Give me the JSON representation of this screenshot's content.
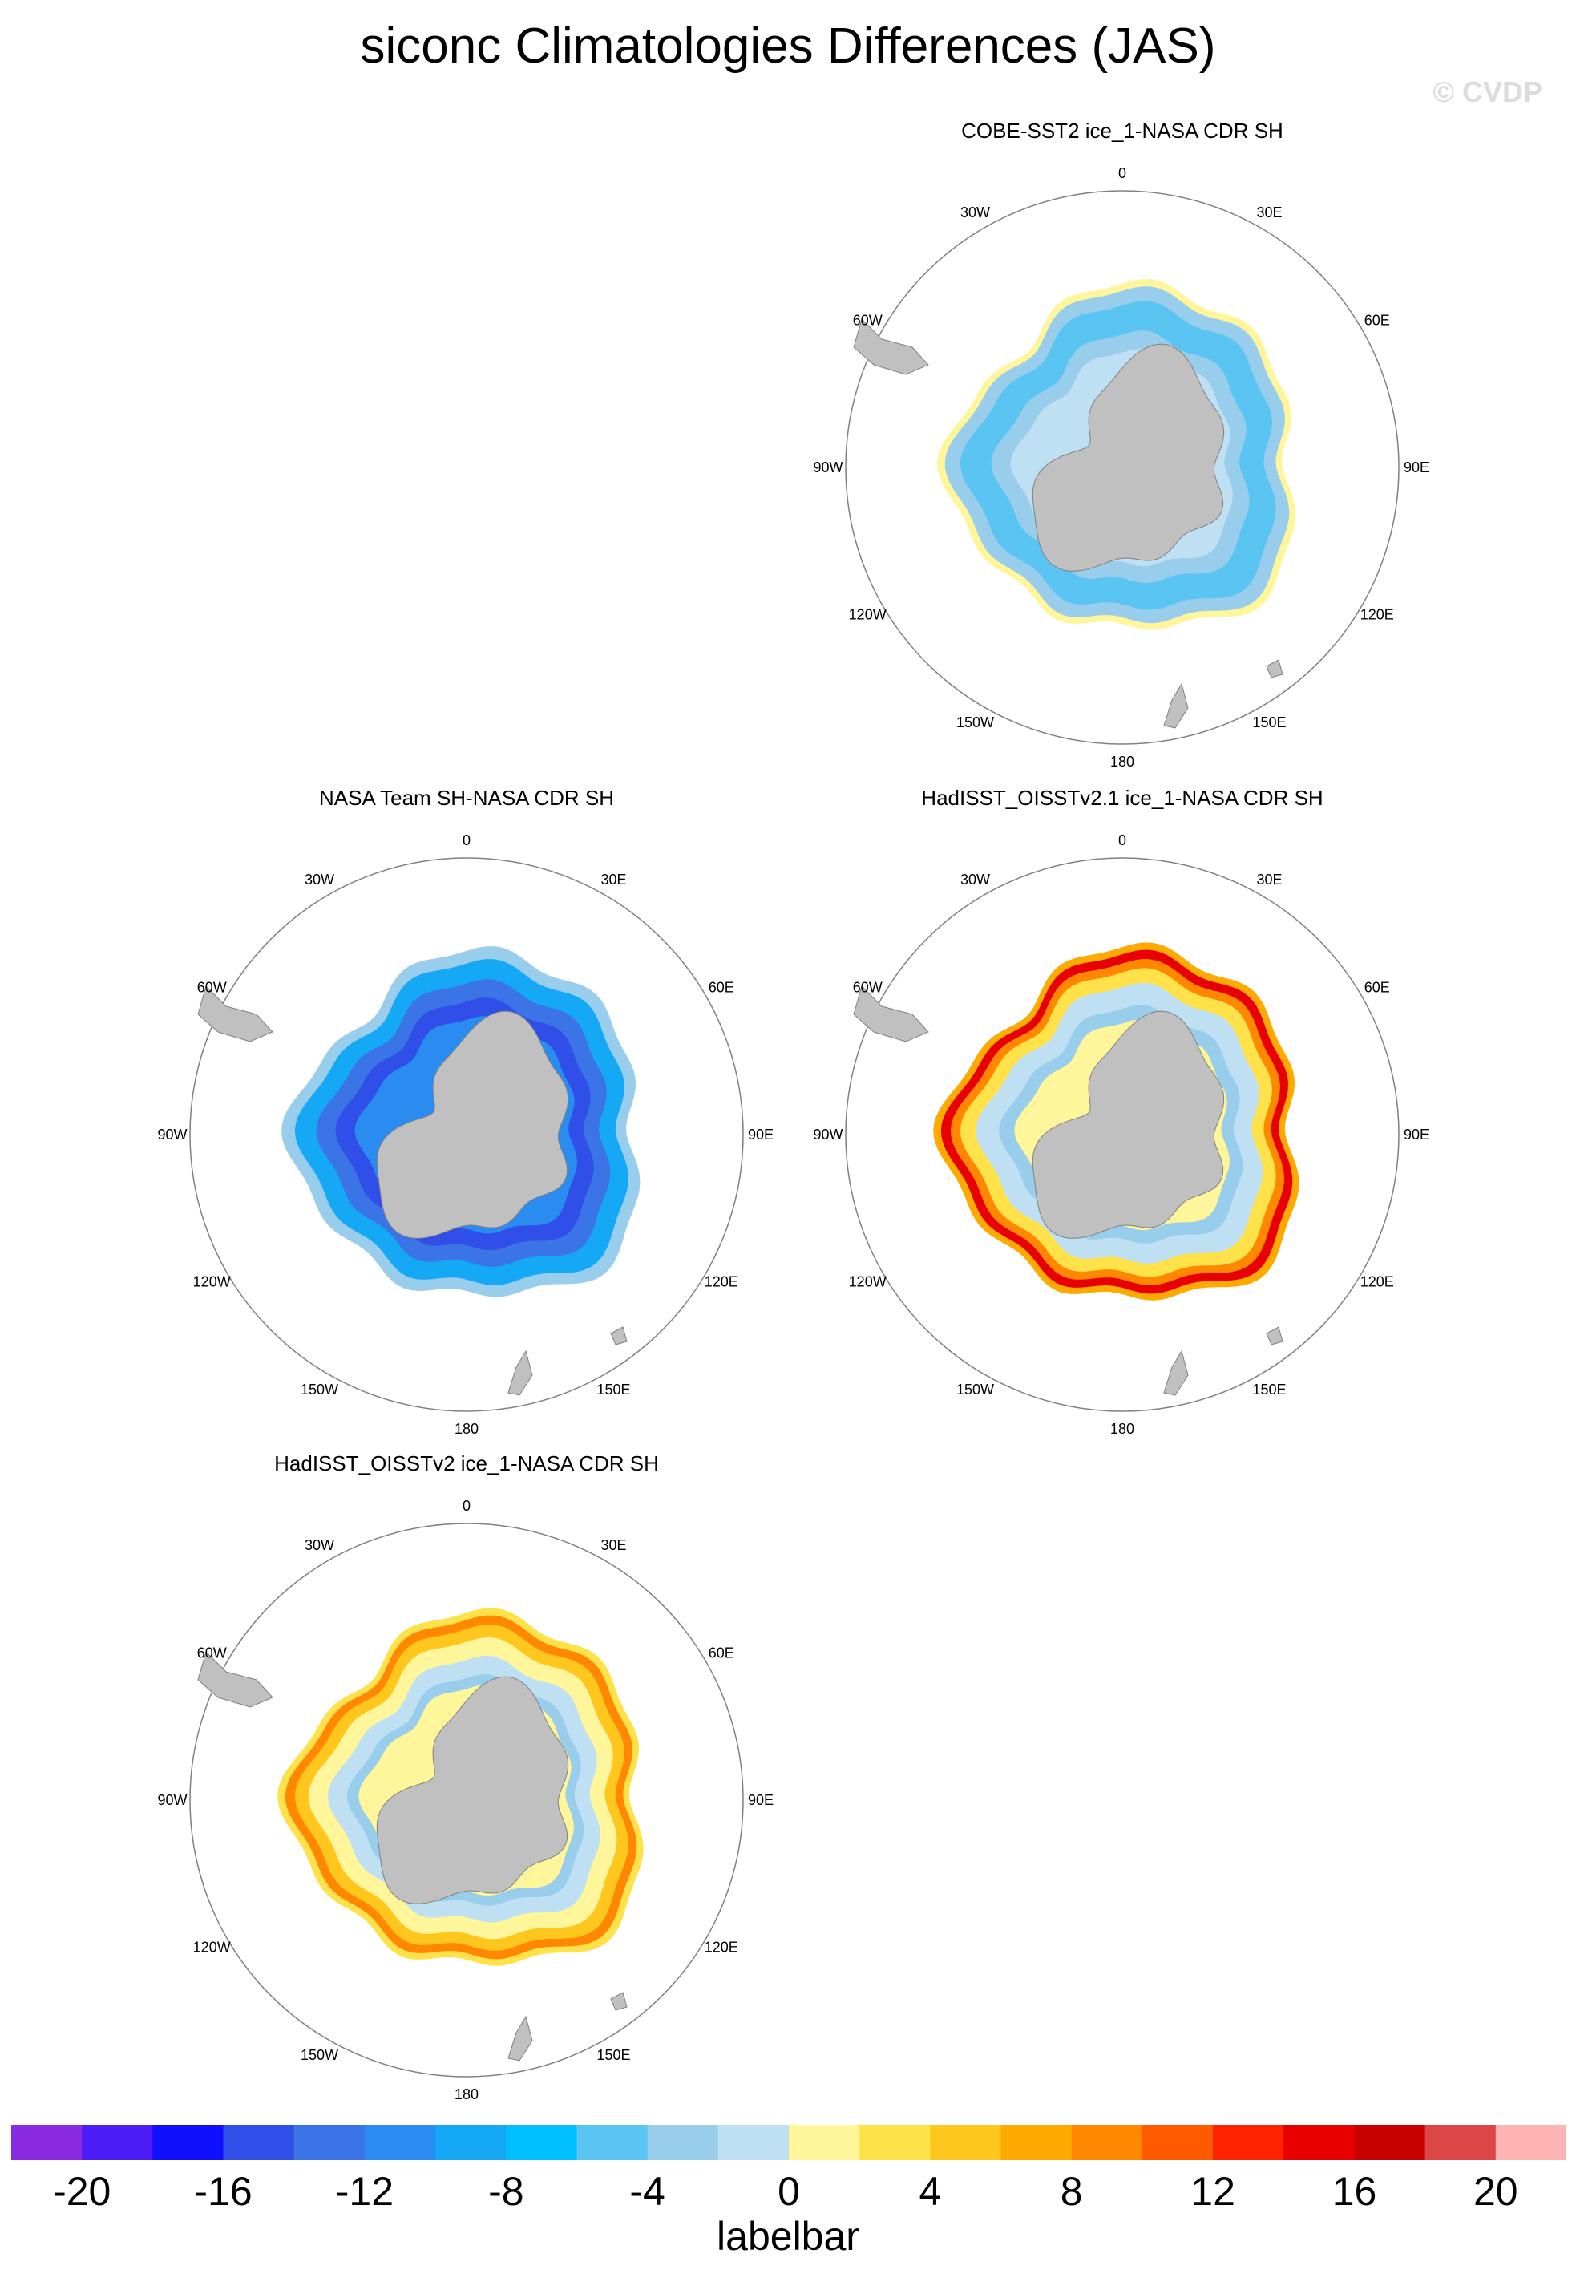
{
  "figure": {
    "title": "siconc Climatologies Differences (JAS)",
    "watermark": "© CVDP"
  },
  "panels": [
    {
      "title": "COBE-SST2 ice_1-NASA CDR SH",
      "position": "top-right",
      "pattern": "mostly negative (light blue), thin positive (yellow) outer rim"
    },
    {
      "title": "NASA Team SH-NASA CDR SH",
      "position": "middle-left",
      "pattern": "strongly negative (blue) throughout"
    },
    {
      "title": "HadISST_OISSTv2.1 ice_1-NASA CDR SH",
      "position": "middle-right",
      "pattern": "strong positive (red) outer ring, weak negative interior"
    },
    {
      "title": "HadISST_OISSTv2 ice_1-NASA CDR SH",
      "position": "bottom-left",
      "pattern": "positive (orange/red) outer ring, weak negative interior"
    }
  ],
  "longitude_labels": {
    "top": "0",
    "upper_left": "30W",
    "upper_right": "30E",
    "left_upper": "60W",
    "right_upper": "60E",
    "left": "90W",
    "right": "90E",
    "left_lower": "120W",
    "right_lower": "120E",
    "lower_left": "150W",
    "lower_right": "150E",
    "bottom": "180"
  },
  "colorbar": {
    "label": "labelbar",
    "ticks": [
      "-20",
      "-16",
      "-12",
      "-8",
      "-4",
      "0",
      "4",
      "8",
      "12",
      "16",
      "20"
    ],
    "colors": [
      "#8a2be2",
      "#4b1cf5",
      "#1010ff",
      "#2f4fe8",
      "#3b74e6",
      "#2a8cf0",
      "#14a8f5",
      "#00c0ff",
      "#5ac4f2",
      "#98cdec",
      "#bfe0f3",
      "#fff59a",
      "#ffe14a",
      "#ffc61e",
      "#ffaa00",
      "#ff8800",
      "#ff5a00",
      "#ff2200",
      "#e80000",
      "#c80000",
      "#dc4646",
      "#ffb4b4"
    ]
  },
  "colors": {
    "land": "#c0c0c0",
    "coast": "#808080",
    "circle": "#808080"
  }
}
